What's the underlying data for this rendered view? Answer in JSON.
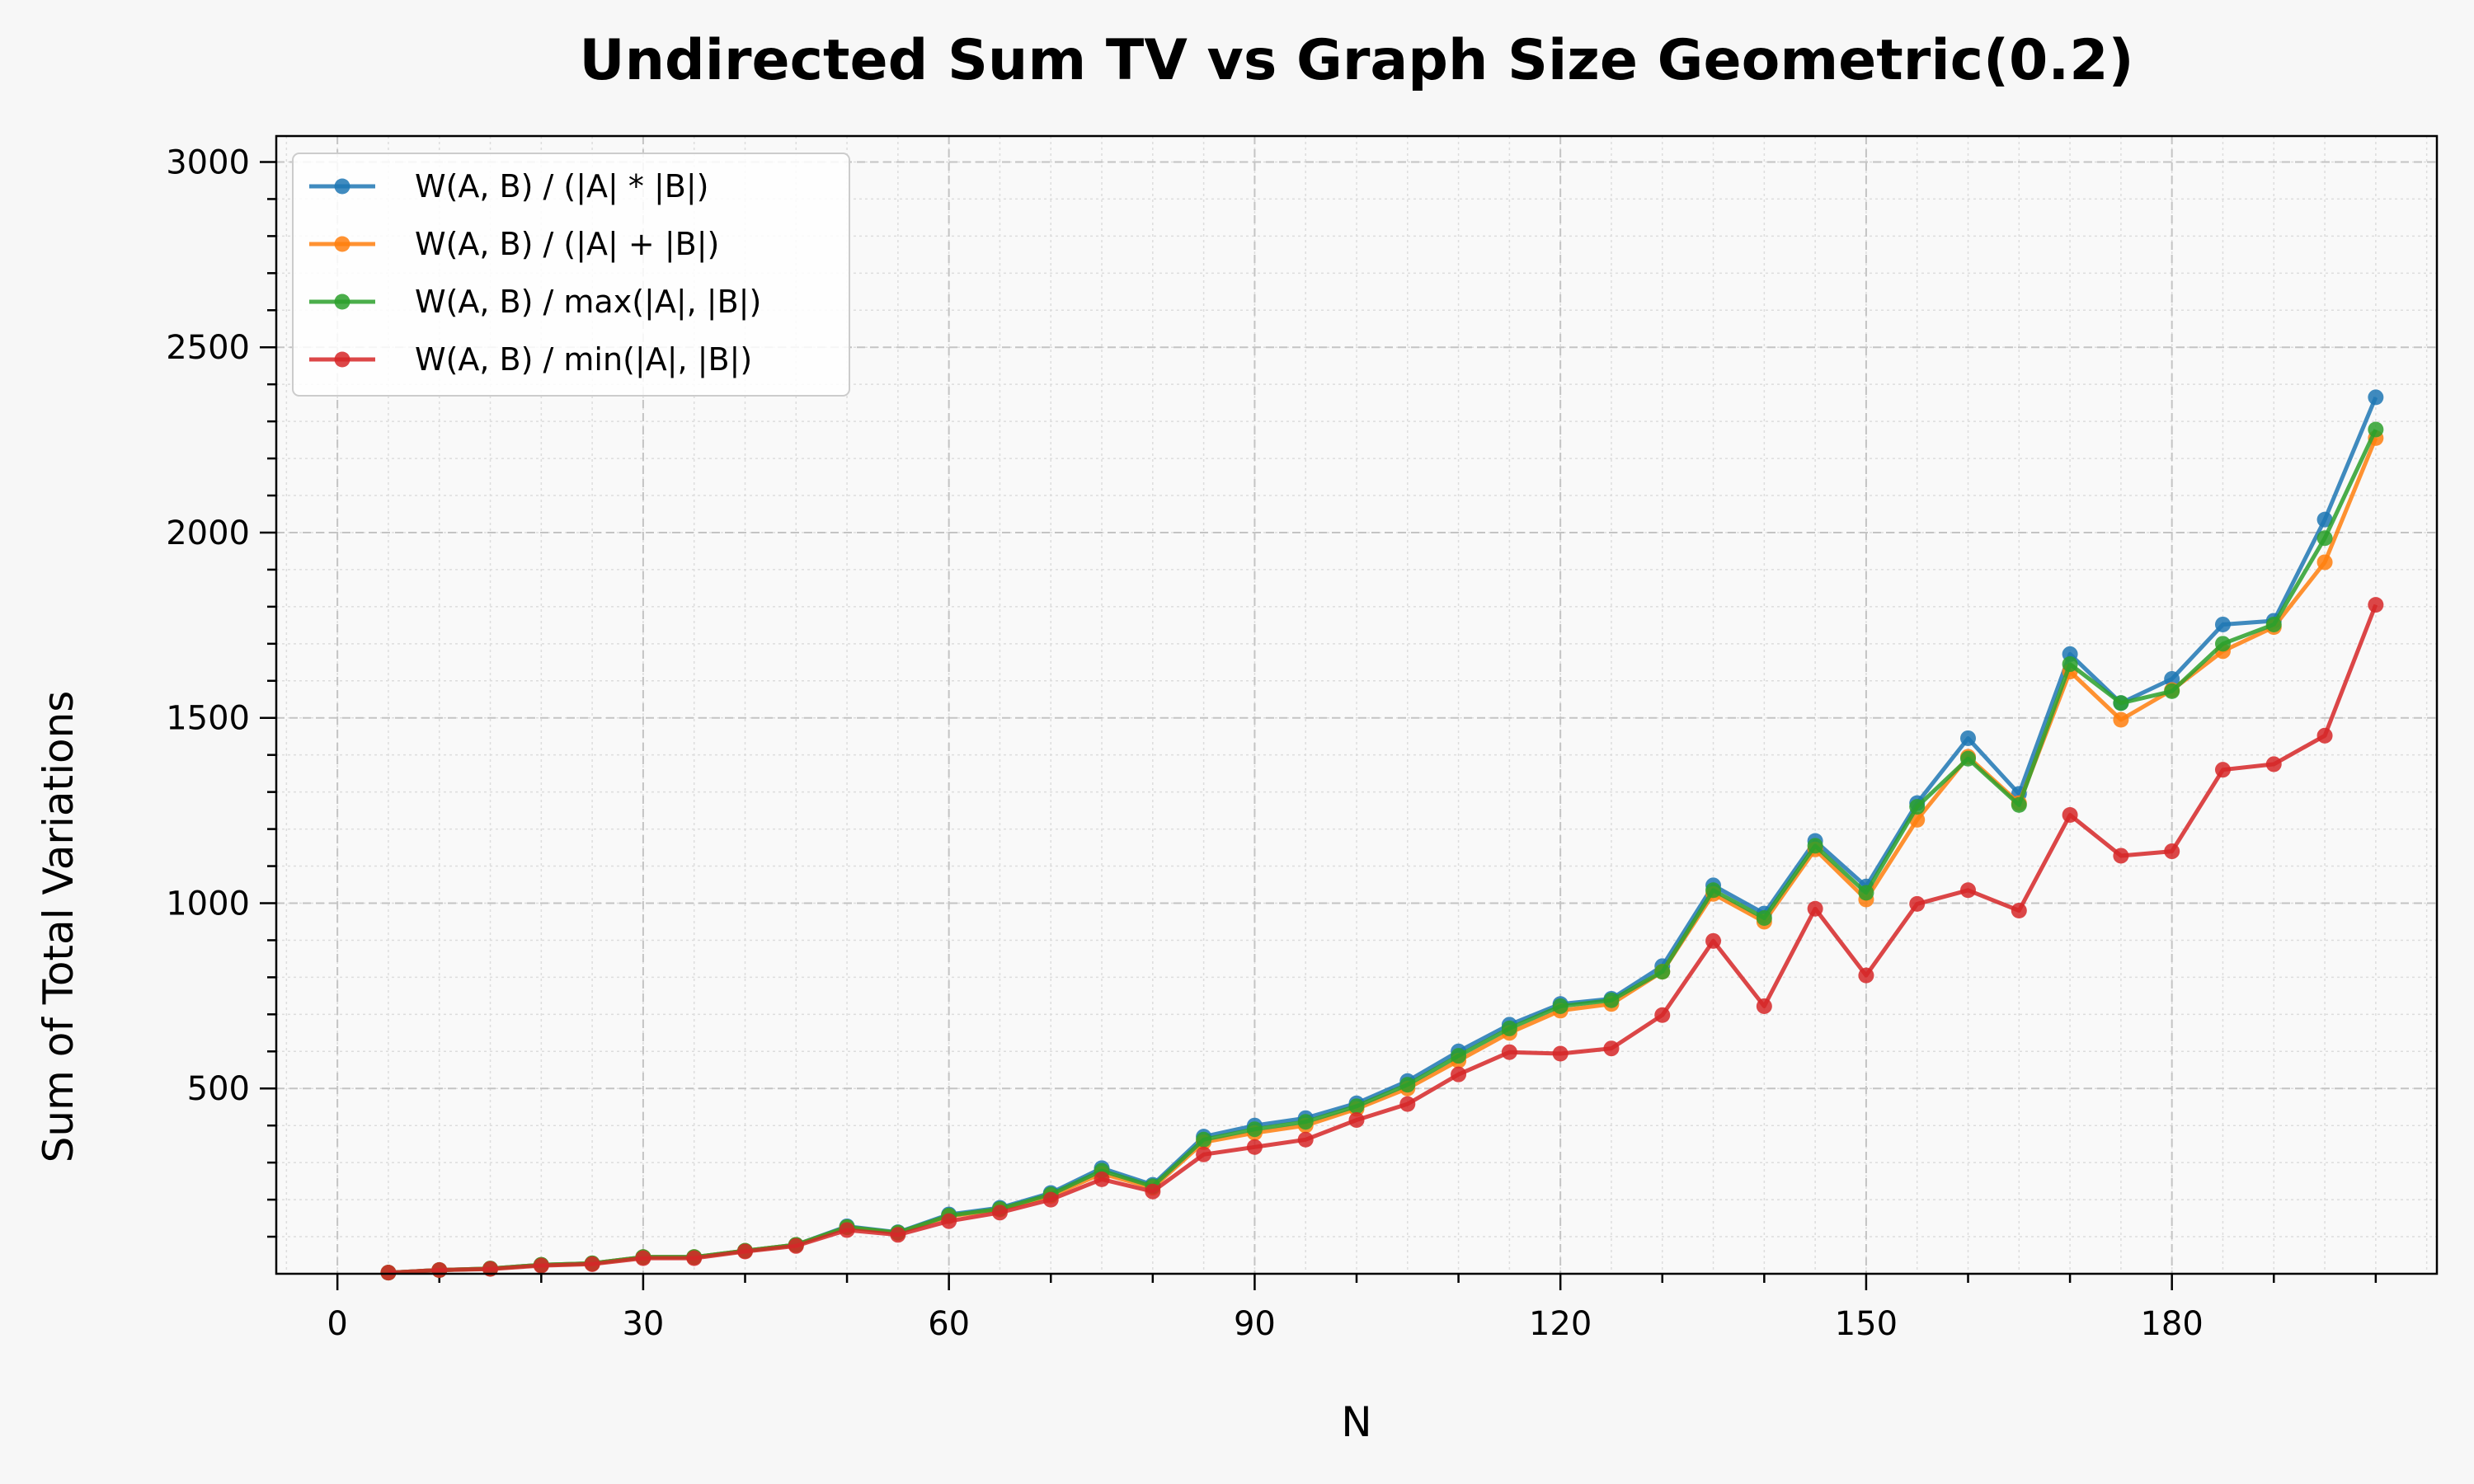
{
  "chart_data": {
    "type": "line",
    "title": "Undirected Sum TV vs Graph Size Geometric(0.2)",
    "xlabel": "N",
    "ylabel": "Sum of Total Variations",
    "xlim": [
      -6,
      206
    ],
    "ylim": [
      0,
      3070
    ],
    "xticks": [
      0,
      30,
      60,
      90,
      120,
      150,
      180
    ],
    "yticks": [
      500,
      1000,
      1500,
      2000,
      2500,
      3000
    ],
    "grid": true,
    "legend_position": "top-left",
    "x": [
      5,
      10,
      15,
      20,
      25,
      30,
      35,
      40,
      45,
      50,
      55,
      60,
      65,
      70,
      75,
      80,
      85,
      90,
      95,
      100,
      105,
      110,
      115,
      120,
      125,
      130,
      135,
      140,
      145,
      150,
      155,
      160,
      165,
      170,
      175,
      180,
      185,
      190,
      195,
      200
    ],
    "series": [
      {
        "name": "W(A, B) / (|A| * |B|)",
        "color": "#1f77b4",
        "values": [
          3,
          10,
          14,
          24,
          28,
          45,
          45,
          62,
          78,
          128,
          112,
          160,
          178,
          218,
          285,
          240,
          370,
          400,
          420,
          460,
          520,
          600,
          672,
          728,
          742,
          830,
          1048,
          972,
          1168,
          1045,
          1270,
          1445,
          1295,
          1672,
          1540,
          1605,
          1752,
          1762,
          2035,
          2365
        ]
      },
      {
        "name": "W(A, B) / (|A| + |B|)",
        "color": "#ff7f0e",
        "values": [
          3,
          10,
          14,
          24,
          28,
          45,
          45,
          62,
          78,
          125,
          110,
          155,
          173,
          210,
          270,
          232,
          355,
          380,
          400,
          445,
          500,
          575,
          650,
          710,
          728,
          815,
          1025,
          950,
          1145,
          1010,
          1225,
          1395,
          1270,
          1625,
          1495,
          1575,
          1680,
          1745,
          1920,
          2255
        ]
      },
      {
        "name": "W(A, B) / max(|A|, |B|)",
        "color": "#2ca02c",
        "values": [
          3,
          10,
          14,
          24,
          28,
          45,
          45,
          62,
          78,
          126,
          111,
          157,
          175,
          214,
          278,
          236,
          362,
          390,
          410,
          452,
          510,
          588,
          662,
          722,
          738,
          815,
          1035,
          960,
          1155,
          1028,
          1260,
          1390,
          1265,
          1645,
          1540,
          1572,
          1700,
          1752,
          1985,
          2278
        ]
      },
      {
        "name": "W(A, B) / min(|A|, |B|)",
        "color": "#d62728",
        "values": [
          3,
          10,
          13,
          22,
          26,
          42,
          42,
          60,
          75,
          118,
          105,
          142,
          165,
          200,
          255,
          222,
          322,
          342,
          362,
          415,
          458,
          538,
          598,
          594,
          608,
          698,
          898,
          722,
          985,
          805,
          998,
          1035,
          980,
          1238,
          1128,
          1140,
          1360,
          1375,
          1452,
          1805
        ]
      }
    ]
  }
}
